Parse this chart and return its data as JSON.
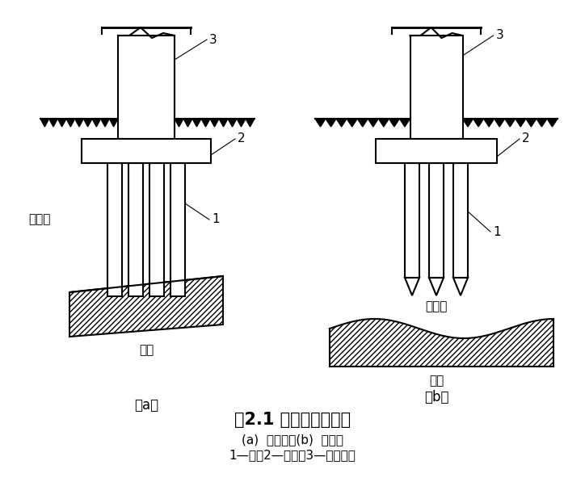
{
  "title": "图2.1 端承桩与摩擦桩",
  "subtitle1": "(a)  端承桩；(b)  摩擦桩",
  "subtitle2": "1—桩；2—承台；3—上部结构",
  "label_a": "（a）",
  "label_b": "（b）",
  "label_soft_a": "软土层",
  "label_hard_a": "硬层",
  "label_soft_b": "软土层",
  "label_hard_b": "硬层",
  "bg_color": "#ffffff",
  "line_color": "#000000"
}
